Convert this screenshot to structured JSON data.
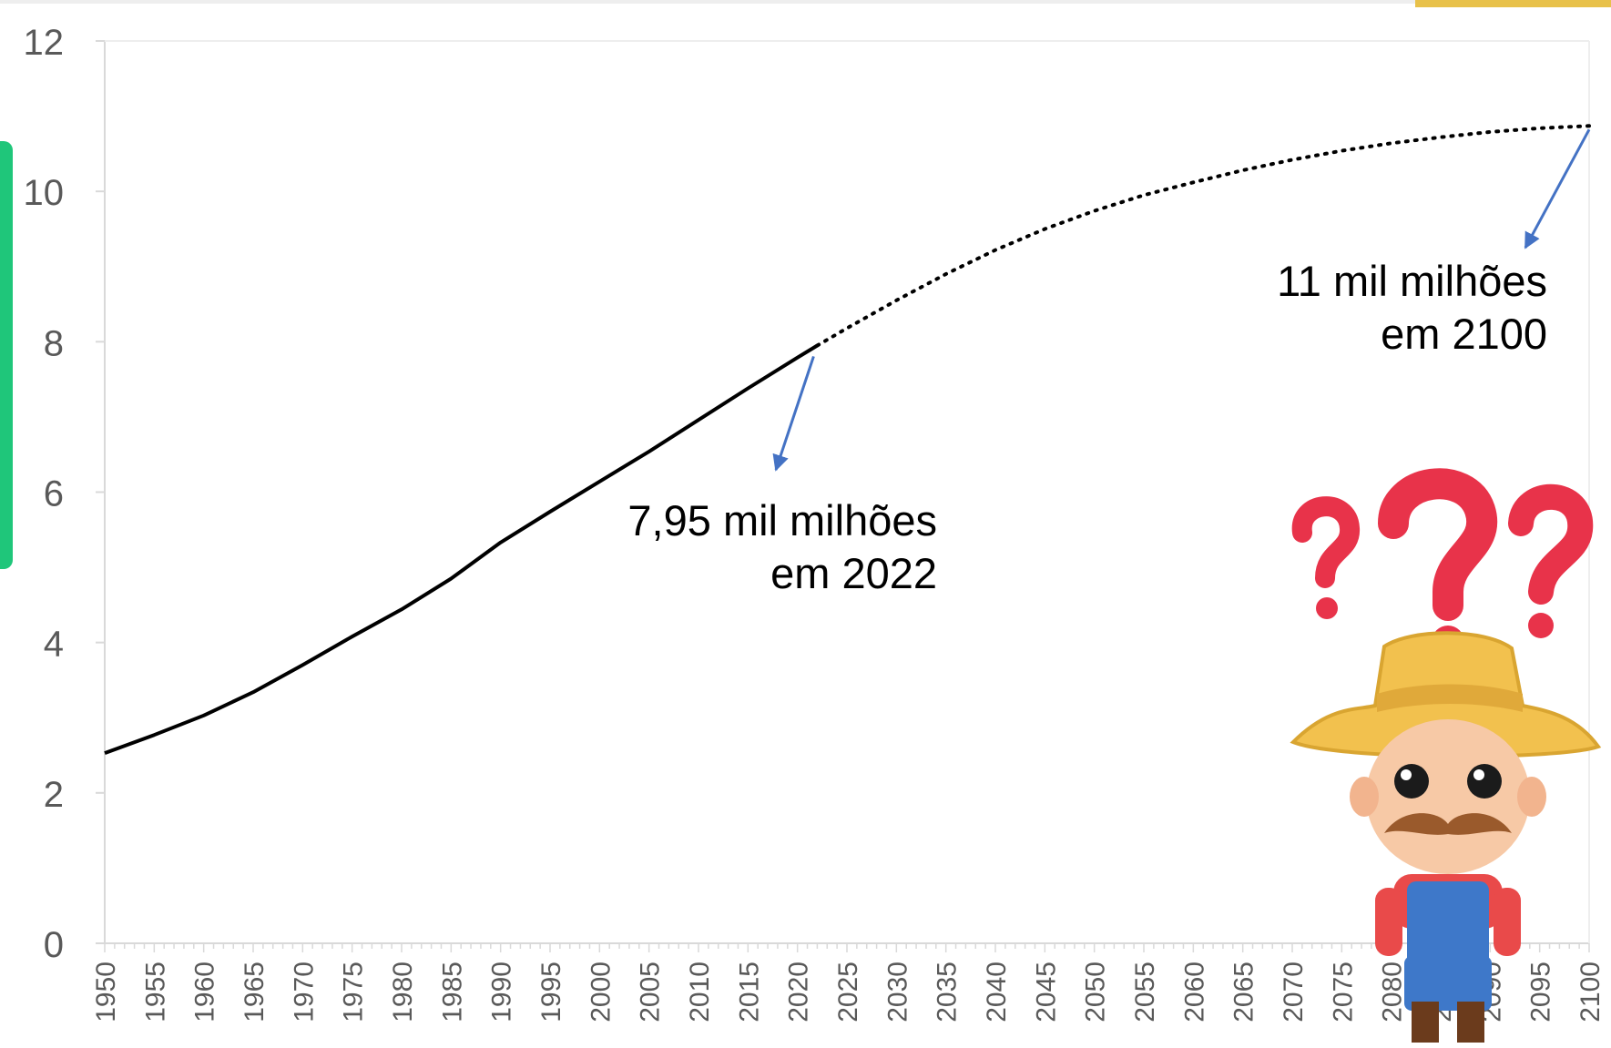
{
  "colors": {
    "line": "#000000",
    "arrow": "#4472C4",
    "axis": "#d9d9d9",
    "tick_text": "#595959",
    "accent_green": "#1fc67a",
    "accent_yellow": "#e8c14a"
  },
  "annotations": {
    "a2022_line1": "7,95 mil milhões",
    "a2022_line2": "em 2022",
    "a2100_line1": "11 mil milhões",
    "a2100_line2": "em 2100"
  },
  "icons": {
    "farmer": "confused-farmer-illustration",
    "question": "question-marks"
  },
  "chart_data": {
    "type": "line",
    "title": "",
    "xlabel": "",
    "ylabel": "",
    "xlim": [
      1950,
      2100
    ],
    "ylim": [
      0,
      12
    ],
    "yticks": [
      0,
      2,
      4,
      6,
      8,
      10,
      12
    ],
    "xticks": [
      1950,
      1955,
      1960,
      1965,
      1970,
      1975,
      1980,
      1985,
      1990,
      1995,
      2000,
      2005,
      2010,
      2015,
      2020,
      2025,
      2030,
      2035,
      2040,
      2045,
      2050,
      2055,
      2060,
      2065,
      2070,
      2075,
      2080,
      2085,
      2090,
      2095,
      2100
    ],
    "grid": false,
    "legend": "none",
    "series": [
      {
        "style": "solid",
        "x": [
          1950,
          1955,
          1960,
          1965,
          1970,
          1975,
          1980,
          1985,
          1990,
          1995,
          2000,
          2005,
          2010,
          2015,
          2020,
          2022
        ],
        "y": [
          2.53,
          2.77,
          3.03,
          3.34,
          3.7,
          4.08,
          4.44,
          4.85,
          5.33,
          5.74,
          6.14,
          6.54,
          6.96,
          7.38,
          7.79,
          7.95
        ]
      },
      {
        "style": "dotted",
        "x": [
          2022,
          2025,
          2030,
          2035,
          2040,
          2045,
          2050,
          2055,
          2060,
          2065,
          2070,
          2075,
          2080,
          2085,
          2090,
          2095,
          2100
        ],
        "y": [
          7.95,
          8.18,
          8.55,
          8.9,
          9.22,
          9.5,
          9.74,
          9.95,
          10.12,
          10.28,
          10.42,
          10.54,
          10.64,
          10.72,
          10.79,
          10.84,
          10.87
        ]
      }
    ]
  }
}
